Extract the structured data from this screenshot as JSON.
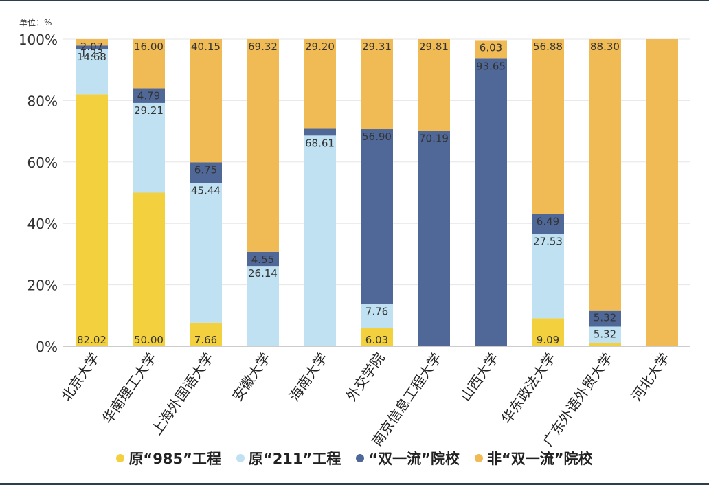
{
  "unit_label": "单位：%",
  "colors": {
    "s985": "#f2d03e",
    "s211": "#bfe1f2",
    "sDouble": "#4f6897",
    "sNon": "#f0ba55",
    "grid": "#e6e6e6",
    "axis": "#9a9a9a",
    "tick": "#333333",
    "label": "#333333"
  },
  "chart_data": {
    "type": "bar",
    "stacked": true,
    "normalized": true,
    "title": "",
    "xlabel": "",
    "ylabel": "",
    "ylim": [
      0,
      100
    ],
    "y_ticks": [
      "0%",
      "20%",
      "40%",
      "60%",
      "80%",
      "100%"
    ],
    "grid": true,
    "legend_position": "bottom",
    "categories": [
      "北京大学",
      "华南理工大学",
      "上海外国语大学",
      "安徽大学",
      "海南大学",
      "外交学院",
      "南京信息工程大学",
      "山西大学",
      "华东政法大学",
      "广东外语外贸大学",
      "河北大学"
    ],
    "series": [
      {
        "key": "s985",
        "name": "原“985”工程",
        "values": [
          82.02,
          50.0,
          7.66,
          0,
          0,
          6.03,
          0,
          0,
          9.09,
          1.06,
          0
        ],
        "labels": [
          "82.02",
          "50.00",
          "7.66",
          "",
          "",
          "6.03",
          "",
          "",
          "9.09",
          "",
          ""
        ]
      },
      {
        "key": "s211",
        "name": "原“211”工程",
        "values": [
          14.68,
          29.21,
          45.44,
          26.14,
          68.61,
          7.76,
          0,
          0,
          27.53,
          5.32,
          0
        ],
        "labels": [
          "14.68",
          "29.21",
          "45.44",
          "26.14",
          "68.61",
          "7.76",
          "",
          "",
          "27.53",
          "5.32",
          ""
        ]
      },
      {
        "key": "sDouble",
        "name": "“双一流”院校",
        "values": [
          1.23,
          4.79,
          6.75,
          4.55,
          2.19,
          56.9,
          70.19,
          93.65,
          6.49,
          5.32,
          0
        ],
        "labels": [
          "1.23",
          "4.79",
          "6.75",
          "4.55",
          "",
          "56.90",
          "70.19",
          "93.65",
          "6.49",
          "5.32",
          ""
        ]
      },
      {
        "key": "sNon",
        "name": "非“双一流”院校",
        "values": [
          2.07,
          16.0,
          40.15,
          69.32,
          29.2,
          29.31,
          29.81,
          6.03,
          56.88,
          88.3,
          100
        ],
        "labels": [
          "2.07",
          "16.00",
          "40.15",
          "69.32",
          "29.20",
          "29.31",
          "29.81",
          "6.03",
          "56.88",
          "88.30",
          ""
        ]
      }
    ]
  }
}
